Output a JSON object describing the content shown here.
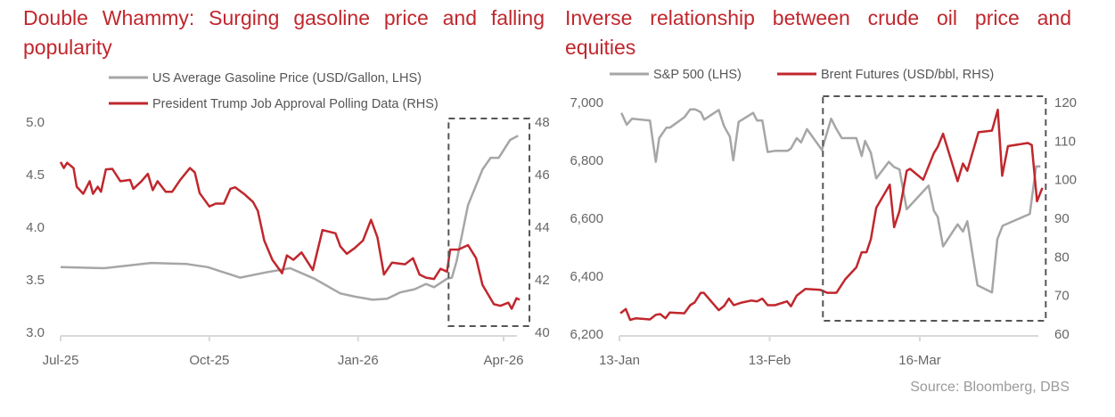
{
  "source": "Source: Bloomberg, DBS",
  "colors": {
    "title": "#c0272d",
    "grey_series": "#a6a6a6",
    "red_series": "#c0272d",
    "box": "#555555"
  },
  "chart_data": [
    {
      "type": "line",
      "title": "Double Whammy: Surging gasoline price and falling popularity",
      "x_unit": "days since 1-Jul-2025",
      "x_ticks": [
        {
          "x": 0,
          "label": "Jul-25"
        },
        {
          "x": 92,
          "label": "Oct-25"
        },
        {
          "x": 184,
          "label": "Jan-26"
        },
        {
          "x": 274,
          "label": "Apr-26"
        }
      ],
      "ylim_left": [
        3.0,
        5.0
      ],
      "yticks_left": [
        "3.0",
        "3.5",
        "4.0",
        "4.5",
        "5.0"
      ],
      "ylim_right": [
        40,
        48
      ],
      "yticks_right": [
        "40",
        "42",
        "44",
        "46",
        "48"
      ],
      "highlight_box_x": [
        240,
        290
      ],
      "series": [
        {
          "name": "US Average Gasoline Price (USD/Gallon, LHS)",
          "axis": "left",
          "color": "#a6a6a6",
          "x": [
            0,
            27,
            56,
            78,
            91,
            111,
            127,
            142,
            157,
            173,
            182,
            193,
            202,
            210,
            219,
            226,
            231,
            239,
            242,
            245,
            252,
            261,
            266,
            271,
            278,
            283
          ],
          "y": [
            3.62,
            3.61,
            3.66,
            3.65,
            3.62,
            3.52,
            3.57,
            3.61,
            3.51,
            3.37,
            3.34,
            3.31,
            3.32,
            3.38,
            3.41,
            3.46,
            3.43,
            3.51,
            3.52,
            3.68,
            4.21,
            4.55,
            4.66,
            4.66,
            4.83,
            4.87
          ]
        },
        {
          "name": "President Trump Job Approval Polling Data (RHS)",
          "axis": "right",
          "color": "#c0272d",
          "x": [
            0,
            2,
            4,
            8,
            10,
            14,
            18,
            20,
            23,
            25,
            28,
            32,
            37,
            43,
            45,
            50,
            54,
            57,
            60,
            65,
            69,
            74,
            80,
            83,
            86,
            92,
            96,
            101,
            105,
            108,
            114,
            119,
            122,
            126,
            131,
            137,
            140,
            144,
            149,
            156,
            162,
            170,
            173,
            177,
            182,
            187,
            192,
            196,
            200,
            205,
            213,
            218,
            222,
            226,
            231,
            235,
            239,
            241,
            246,
            252,
            257,
            261,
            268,
            272,
            277,
            279,
            282,
            284
          ],
          "y": [
            46.48,
            46.25,
            46.45,
            46.25,
            45.54,
            45.27,
            45.75,
            45.27,
            45.54,
            45.35,
            46.2,
            46.22,
            45.75,
            45.8,
            45.46,
            45.75,
            46.03,
            45.41,
            45.75,
            45.35,
            45.35,
            45.8,
            46.25,
            46.08,
            45.3,
            44.79,
            44.9,
            44.9,
            45.46,
            45.52,
            45.24,
            44.96,
            44.62,
            43.49,
            42.76,
            42.25,
            42.93,
            42.76,
            43.04,
            42.37,
            43.89,
            43.77,
            43.27,
            42.99,
            43.21,
            43.49,
            44.28,
            43.61,
            42.2,
            42.65,
            42.59,
            42.82,
            42.2,
            42.08,
            42.03,
            42.42,
            42.31,
            43.15,
            43.15,
            43.32,
            42.82,
            41.8,
            41.07,
            41.01,
            41.13,
            40.9,
            41.3,
            41.24
          ]
        }
      ]
    },
    {
      "type": "line",
      "title": "Inverse relationship between crude oil price and equities",
      "x_unit": "days since 13-Jan",
      "x_ticks": [
        {
          "x": 0,
          "label": "13-Jan"
        },
        {
          "x": 31,
          "label": "13-Feb"
        },
        {
          "x": 62,
          "label": "16-Mar"
        }
      ],
      "ylim_left": [
        6200,
        7000
      ],
      "yticks_left": [
        "6,200",
        "6,400",
        "6,600",
        "6,800",
        "7,000"
      ],
      "ylim_right": [
        60,
        120
      ],
      "yticks_right": [
        "60",
        "70",
        "80",
        "90",
        "100",
        "110",
        "120"
      ],
      "highlight_box_x": [
        42,
        88
      ],
      "series": [
        {
          "name": "S&P 500 (LHS)",
          "axis": "left",
          "color": "#a6a6a6",
          "x": [
            0.4,
            1.5,
            2.6,
            6.3,
            7.5,
            8.2,
            9.7,
            10.4,
            13.4,
            14.6,
            15.7,
            16.8,
            17.5,
            20.5,
            21.6,
            22.8,
            23.5,
            24.6,
            27.6,
            28.4,
            29.5,
            30.6,
            32.1,
            34.7,
            35.4,
            36.6,
            37.5,
            38.7,
            41.8,
            43.7,
            44.8,
            45.9,
            48.9,
            50,
            50.7,
            51.9,
            53,
            55.6,
            56.7,
            57.8,
            59.3,
            63.8,
            64.9,
            65.7,
            66.8,
            69.8,
            70.9,
            71.8,
            73.9,
            76.9,
            78,
            79.1,
            84.7,
            86,
            86.9
          ],
          "y": [
            6964,
            6923,
            6944,
            6938,
            6795,
            6877,
            6913,
            6913,
            6949,
            6976,
            6976,
            6966,
            6941,
            6974,
            6918,
            6882,
            6800,
            6933,
            6964,
            6938,
            6938,
            6829,
            6833,
            6833,
            6841,
            6877,
            6862,
            6908,
            6836,
            6944,
            6908,
            6877,
            6877,
            6815,
            6867,
            6826,
            6738,
            6795,
            6777,
            6769,
            6631,
            6713,
            6626,
            6605,
            6503,
            6579,
            6554,
            6590,
            6369,
            6344,
            6528,
            6574,
            6615,
            6779,
            6779
          ]
        },
        {
          "name": "Brent Futures (USD/bbl, RHS)",
          "axis": "right",
          "color": "#c0272d",
          "x": [
            0.2,
            1.3,
            2.2,
            3.4,
            6.3,
            7.5,
            8.4,
            9.5,
            10.4,
            13.4,
            14.6,
            15.5,
            16.8,
            17.4,
            20.5,
            21.6,
            22.6,
            23.6,
            25,
            27.2,
            28.4,
            29.5,
            30.6,
            32.1,
            34.6,
            35.4,
            36.6,
            38.4,
            41.4,
            42.9,
            44.8,
            46.6,
            48.9,
            50,
            51,
            51.9,
            53,
            55.8,
            56.7,
            57.8,
            59.3,
            60,
            62.7,
            64.9,
            65.7,
            66.8,
            69.8,
            70.9,
            71.8,
            74.1,
            76.9,
            78.1,
            79,
            80.2,
            84.3,
            85.1,
            86.2,
            87.3
          ],
          "y": [
            65.4,
            66.5,
            63.7,
            64.1,
            63.8,
            65.0,
            65.2,
            64.1,
            65.6,
            65.4,
            67.5,
            68.2,
            70.7,
            70.7,
            66.2,
            67.3,
            69.2,
            67.5,
            68.1,
            68.7,
            68.5,
            69.2,
            67.5,
            67.5,
            68.5,
            67.2,
            70.0,
            71.7,
            71.5,
            70.7,
            70.7,
            74.2,
            77.3,
            81.2,
            81.2,
            84.6,
            92.7,
            98.7,
            87.7,
            91.9,
            102.3,
            102.8,
            100,
            106.9,
            108.5,
            111.9,
            99.6,
            104.2,
            102.3,
            112.3,
            112.7,
            118.1,
            101,
            108.7,
            109.5,
            109,
            94.4,
            97.9
          ]
        }
      ]
    }
  ]
}
